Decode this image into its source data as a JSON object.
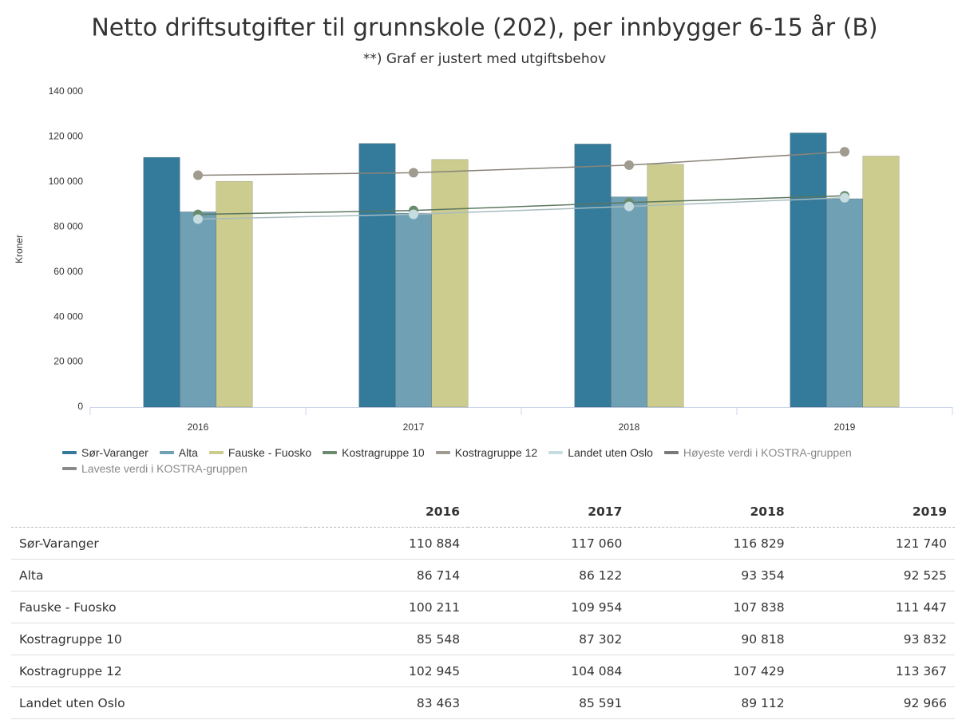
{
  "chart_data": {
    "type": "bar",
    "title": "Netto driftsutgifter til grunnskole (202), per innbygger 6-15 år (B)",
    "subtitle": "**) Graf er justert med utgiftsbehov",
    "ylabel": "Kroner",
    "categories": [
      "2016",
      "2017",
      "2018",
      "2019"
    ],
    "ylim": [
      0,
      140000
    ],
    "yticks": [
      {
        "value": 0,
        "label": "0"
      },
      {
        "value": 20000,
        "label": "20 000"
      },
      {
        "value": 40000,
        "label": "40 000"
      },
      {
        "value": 60000,
        "label": "60 000"
      },
      {
        "value": 80000,
        "label": "80 000"
      },
      {
        "value": 100000,
        "label": "100 000"
      },
      {
        "value": 120000,
        "label": "120 000"
      },
      {
        "value": 140000,
        "label": "140 000"
      }
    ],
    "grid": false,
    "series": [
      {
        "name": "Sør-Varanger",
        "type": "bar",
        "color": "#347a9a",
        "values": [
          110884,
          117060,
          116829,
          121740
        ]
      },
      {
        "name": "Alta",
        "type": "bar",
        "color": "#6fa0b4",
        "values": [
          86714,
          86122,
          93354,
          92525
        ]
      },
      {
        "name": "Fauske - Fuosko",
        "type": "bar",
        "color": "#cccc8e",
        "values": [
          100211,
          109954,
          107838,
          111447
        ]
      },
      {
        "name": "Kostragruppe 10",
        "type": "line",
        "color": "#6b8b6f",
        "values": [
          85548,
          87302,
          90818,
          93832
        ]
      },
      {
        "name": "Kostragruppe 12",
        "type": "line",
        "color": "#a09a8f",
        "values": [
          102945,
          104084,
          107429,
          113367
        ]
      },
      {
        "name": "Landet uten Oslo",
        "type": "line",
        "color": "#c5dde0",
        "values": [
          83463,
          85591,
          89112,
          92966
        ]
      },
      {
        "name": "Høyeste verdi i KOSTRA-gruppen",
        "type": "line",
        "color": "#7a7a7a",
        "values": [
          null,
          null,
          null,
          null
        ]
      },
      {
        "name": "Laveste verdi i KOSTRA-gruppen",
        "type": "line",
        "color": "#8a8a8a",
        "values": [
          null,
          null,
          null,
          null
        ]
      }
    ]
  },
  "table": {
    "header": [
      "2016",
      "2017",
      "2018",
      "2019"
    ],
    "rows": [
      [
        "Sør-Varanger",
        "110 884",
        "117 060",
        "116 829",
        "121 740"
      ],
      [
        "Alta",
        "86 714",
        "86 122",
        "93 354",
        "92 525"
      ],
      [
        "Fauske - Fuosko",
        "100 211",
        "109 954",
        "107 838",
        "111 447"
      ],
      [
        "Kostragruppe 10",
        "85 548",
        "87 302",
        "90 818",
        "93 832"
      ],
      [
        "Kostragruppe 12",
        "102 945",
        "104 084",
        "107 429",
        "113 367"
      ],
      [
        "Landet uten Oslo",
        "83 463",
        "85 591",
        "89 112",
        "92 966"
      ]
    ]
  }
}
